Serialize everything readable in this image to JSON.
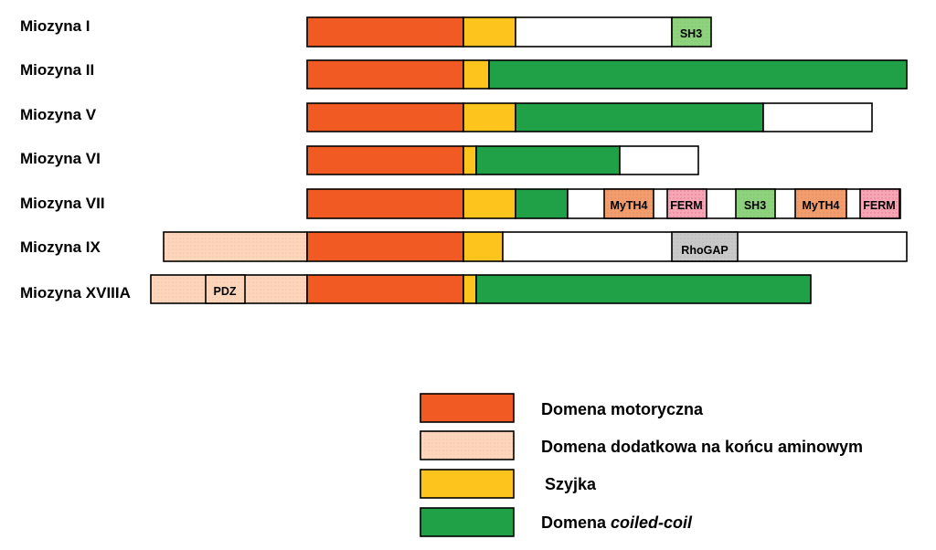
{
  "colors": {
    "motor": "#F15A22",
    "n_terminal": "#FDD5BA",
    "neck": "#FCC41C",
    "coiled_coil": "#21A147",
    "tail": "#FFFFFF",
    "sh3": "#8FD27E",
    "myth4": "#F19D6E",
    "ferm": "#F7A6B6",
    "rhogap": "#C8C8C8",
    "pdz": "#FDD5BA"
  },
  "myosins": [
    {
      "name": "Miozyna I"
    },
    {
      "name": "Miozyna II"
    },
    {
      "name": "Miozyna V"
    },
    {
      "name": "Miozyna VI"
    },
    {
      "name": "Miozyna VII"
    },
    {
      "name": "Miozyna IX"
    },
    {
      "name": "Miozyna XVIIIA"
    }
  ],
  "domain_labels": {
    "sh3": "SH3",
    "myth4": "MyTH4",
    "ferm": "FERM",
    "rhogap": "RhoGAP",
    "pdz": "PDZ"
  },
  "legend": [
    {
      "key": "motor",
      "label": "Domena motoryczna"
    },
    {
      "key": "n_terminal",
      "label": "Domena dodatkowa na końcu aminowym"
    },
    {
      "key": "neck",
      "label": "Szyjka"
    },
    {
      "key": "coiled_coil",
      "label_plain": "Domena ",
      "label_italic": "coiled-coil"
    }
  ]
}
